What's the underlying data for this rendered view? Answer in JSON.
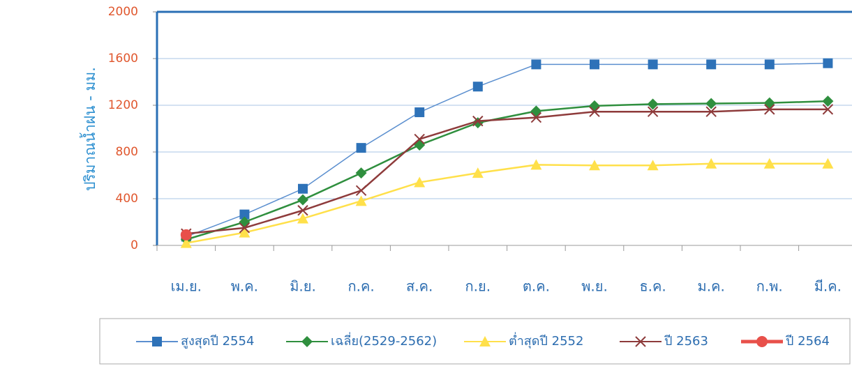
{
  "chart_data": {
    "type": "line",
    "y_label": "ปริมาณน้ำฝน - มม.",
    "categories": [
      "เม.ย.",
      "พ.ค.",
      "มิ.ย.",
      "ก.ค.",
      "ส.ค.",
      "ก.ย.",
      "ต.ค.",
      "พ.ย.",
      "ธ.ค.",
      "ม.ค.",
      "ก.พ.",
      "มี.ค."
    ],
    "ylim": [
      0,
      2000
    ],
    "yticks": [
      0,
      400,
      800,
      1200,
      1600,
      2000
    ],
    "grid": true,
    "legend": "bottom",
    "series": [
      {
        "name": "สูงสุดปี 2554",
        "color": "#2e72b8",
        "line_color": "#5b8fcf",
        "marker": "square",
        "values": [
          75,
          265,
          485,
          835,
          1140,
          1360,
          1550,
          1550,
          1550,
          1550,
          1550,
          1560
        ]
      },
      {
        "name": "เฉลี่ย(2529-2562)",
        "color": "#2f8f3e",
        "line_color": "#2f8f3e",
        "marker": "diamond",
        "values": [
          50,
          200,
          390,
          620,
          860,
          1050,
          1150,
          1195,
          1210,
          1215,
          1220,
          1235
        ]
      },
      {
        "name": "ต่ำสุดปี 2552",
        "color": "#ffe04a",
        "line_color": "#ffe04a",
        "marker": "triangle",
        "values": [
          20,
          110,
          230,
          380,
          540,
          620,
          690,
          685,
          685,
          700,
          700,
          700
        ]
      },
      {
        "name": "ปี 2563",
        "color": "#8e3b3b",
        "line_color": "#8e3b3b",
        "marker": "x",
        "values": [
          100,
          150,
          300,
          470,
          910,
          1065,
          1095,
          1145,
          1145,
          1145,
          1165,
          1165
        ]
      },
      {
        "name": "ปี 2564",
        "color": "#e8504a",
        "line_color": "#e8504a",
        "marker": "circle",
        "values": [
          90,
          null,
          null,
          null,
          null,
          null,
          null,
          null,
          null,
          null,
          null,
          null
        ]
      }
    ]
  }
}
